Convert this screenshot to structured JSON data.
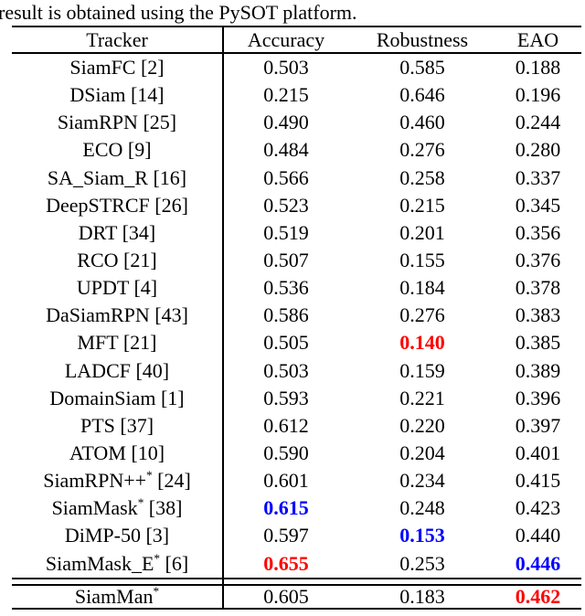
{
  "caption": "result is obtained using the PySOT platform.",
  "colors": {
    "text": "#000000",
    "highlight_red": "#ff0000",
    "highlight_blue": "#0000ff",
    "rule": "#000000",
    "background": "#ffffff"
  },
  "table": {
    "headers": {
      "tracker": "Tracker",
      "accuracy": "Accuracy",
      "robustness": "Robustness",
      "eao": "EAO"
    },
    "rows": [
      {
        "name": "SiamFC",
        "star": "",
        "ref": "[2]",
        "accuracy": {
          "v": "0.503",
          "c": ""
        },
        "robustness": {
          "v": "0.585",
          "c": ""
        },
        "eao": {
          "v": "0.188",
          "c": ""
        }
      },
      {
        "name": "DSiam",
        "star": "",
        "ref": "[14]",
        "accuracy": {
          "v": "0.215",
          "c": ""
        },
        "robustness": {
          "v": "0.646",
          "c": ""
        },
        "eao": {
          "v": "0.196",
          "c": ""
        }
      },
      {
        "name": "SiamRPN",
        "star": "",
        "ref": "[25]",
        "accuracy": {
          "v": "0.490",
          "c": ""
        },
        "robustness": {
          "v": "0.460",
          "c": ""
        },
        "eao": {
          "v": "0.244",
          "c": ""
        }
      },
      {
        "name": "ECO",
        "star": "",
        "ref": "[9]",
        "accuracy": {
          "v": "0.484",
          "c": ""
        },
        "robustness": {
          "v": "0.276",
          "c": ""
        },
        "eao": {
          "v": "0.280",
          "c": ""
        }
      },
      {
        "name": "SA_Siam_R",
        "star": "",
        "ref": "[16]",
        "accuracy": {
          "v": "0.566",
          "c": ""
        },
        "robustness": {
          "v": "0.258",
          "c": ""
        },
        "eao": {
          "v": "0.337",
          "c": ""
        }
      },
      {
        "name": "DeepSTRCF",
        "star": "",
        "ref": "[26]",
        "accuracy": {
          "v": "0.523",
          "c": ""
        },
        "robustness": {
          "v": "0.215",
          "c": ""
        },
        "eao": {
          "v": "0.345",
          "c": ""
        }
      },
      {
        "name": "DRT",
        "star": "",
        "ref": "[34]",
        "accuracy": {
          "v": "0.519",
          "c": ""
        },
        "robustness": {
          "v": "0.201",
          "c": ""
        },
        "eao": {
          "v": "0.356",
          "c": ""
        }
      },
      {
        "name": "RCO",
        "star": "",
        "ref": "[21]",
        "accuracy": {
          "v": "0.507",
          "c": ""
        },
        "robustness": {
          "v": "0.155",
          "c": ""
        },
        "eao": {
          "v": "0.376",
          "c": ""
        }
      },
      {
        "name": "UPDT",
        "star": "",
        "ref": "[4]",
        "accuracy": {
          "v": "0.536",
          "c": ""
        },
        "robustness": {
          "v": "0.184",
          "c": ""
        },
        "eao": {
          "v": "0.378",
          "c": ""
        }
      },
      {
        "name": "DaSiamRPN",
        "star": "",
        "ref": "[43]",
        "accuracy": {
          "v": "0.586",
          "c": ""
        },
        "robustness": {
          "v": "0.276",
          "c": ""
        },
        "eao": {
          "v": "0.383",
          "c": ""
        }
      },
      {
        "name": "MFT",
        "star": "",
        "ref": "[21]",
        "accuracy": {
          "v": "0.505",
          "c": ""
        },
        "robustness": {
          "v": "0.140",
          "c": "red"
        },
        "eao": {
          "v": "0.385",
          "c": ""
        }
      },
      {
        "name": "LADCF",
        "star": "",
        "ref": "[40]",
        "accuracy": {
          "v": "0.503",
          "c": ""
        },
        "robustness": {
          "v": "0.159",
          "c": ""
        },
        "eao": {
          "v": "0.389",
          "c": ""
        }
      },
      {
        "name": "DomainSiam",
        "star": "",
        "ref": "[1]",
        "accuracy": {
          "v": "0.593",
          "c": ""
        },
        "robustness": {
          "v": "0.221",
          "c": ""
        },
        "eao": {
          "v": "0.396",
          "c": ""
        }
      },
      {
        "name": "PTS",
        "star": "",
        "ref": "[37]",
        "accuracy": {
          "v": "0.612",
          "c": ""
        },
        "robustness": {
          "v": "0.220",
          "c": ""
        },
        "eao": {
          "v": "0.397",
          "c": ""
        }
      },
      {
        "name": "ATOM",
        "star": "",
        "ref": "[10]",
        "accuracy": {
          "v": "0.590",
          "c": ""
        },
        "robustness": {
          "v": "0.204",
          "c": ""
        },
        "eao": {
          "v": "0.401",
          "c": ""
        }
      },
      {
        "name": "SiamRPN++",
        "star": "*",
        "ref": "[24]",
        "accuracy": {
          "v": "0.601",
          "c": ""
        },
        "robustness": {
          "v": "0.234",
          "c": ""
        },
        "eao": {
          "v": "0.415",
          "c": ""
        }
      },
      {
        "name": "SiamMask",
        "star": "*",
        "ref": "[38]",
        "accuracy": {
          "v": "0.615",
          "c": "blue"
        },
        "robustness": {
          "v": "0.248",
          "c": ""
        },
        "eao": {
          "v": "0.423",
          "c": ""
        }
      },
      {
        "name": "DiMP-50",
        "star": "",
        "ref": "[3]",
        "accuracy": {
          "v": "0.597",
          "c": ""
        },
        "robustness": {
          "v": "0.153",
          "c": "blue"
        },
        "eao": {
          "v": "0.440",
          "c": ""
        }
      },
      {
        "name": "SiamMask_E",
        "star": "*",
        "ref": "[6]",
        "accuracy": {
          "v": "0.655",
          "c": "red"
        },
        "robustness": {
          "v": "0.253",
          "c": ""
        },
        "eao": {
          "v": "0.446",
          "c": "blue"
        }
      }
    ],
    "footer": {
      "name": "SiamMan",
      "star": "*",
      "ref": "",
      "accuracy": {
        "v": "0.605",
        "c": ""
      },
      "robustness": {
        "v": "0.183",
        "c": ""
      },
      "eao": {
        "v": "0.462",
        "c": "red"
      }
    }
  }
}
